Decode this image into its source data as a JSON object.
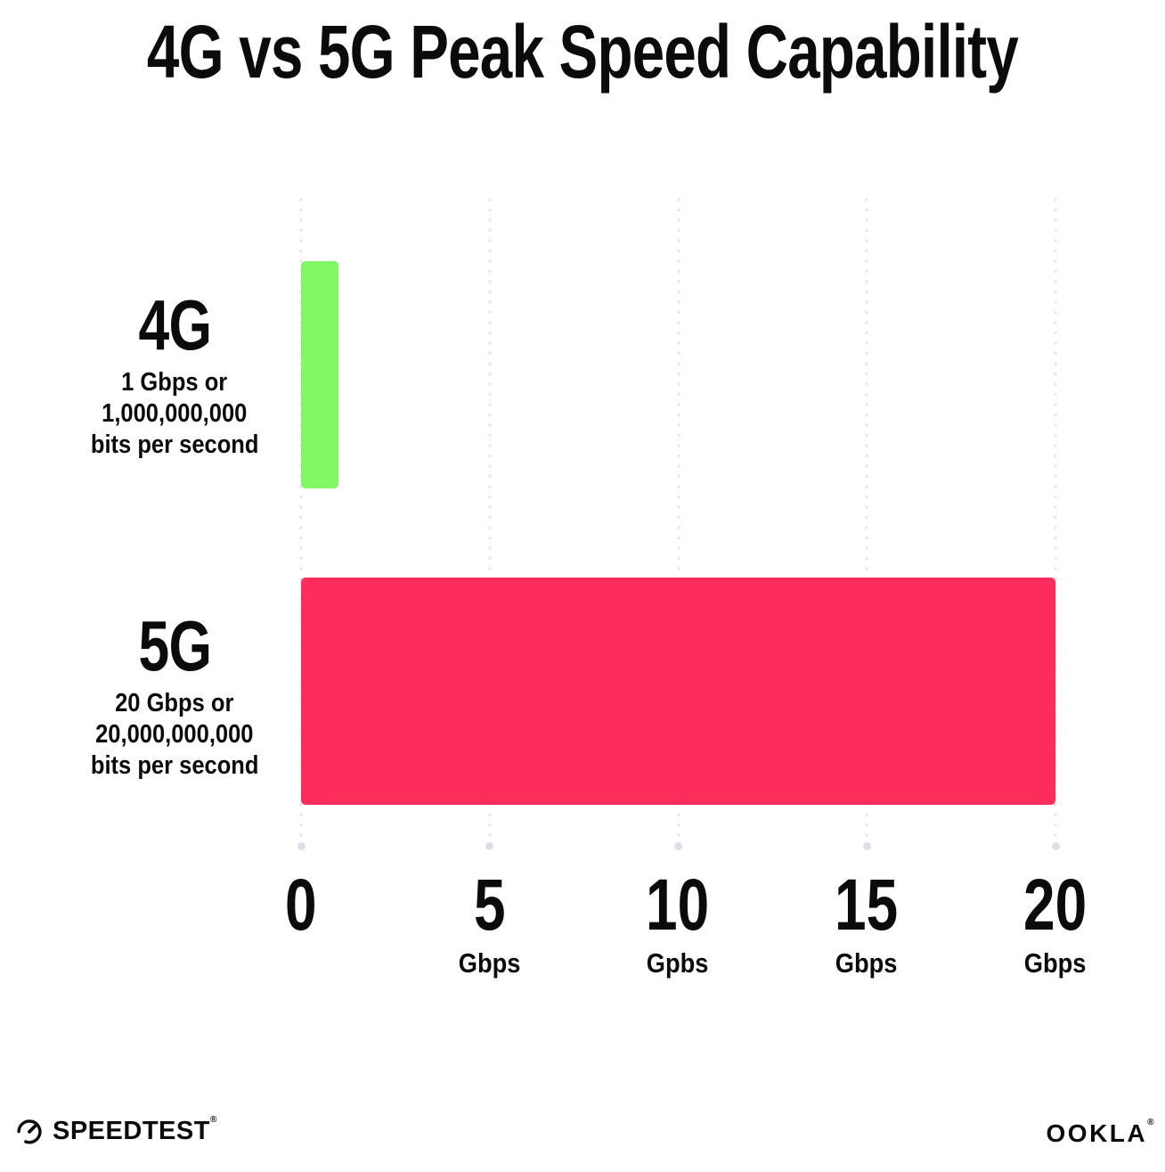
{
  "chart_data": {
    "type": "bar",
    "orientation": "horizontal",
    "title": "4G vs 5G Peak Speed Capability",
    "categories": [
      "4G",
      "5G"
    ],
    "values": [
      1,
      20
    ],
    "unit": "Gbps",
    "xlim": [
      0,
      20
    ],
    "x_ticks": [
      0,
      5,
      10,
      15,
      20
    ],
    "x_tick_units": [
      "",
      "Gbps",
      "Gpbs",
      "Gbps",
      "Gbps"
    ],
    "bar_colors": [
      "#81F863",
      "#FD2D5B"
    ],
    "grid": "vertical dotted gridlines at each tick, terminating dot at bottom",
    "legend_position": "none",
    "annotations": [
      "4G: 1 Gbps or 1,000,000,000 bits per second",
      "5G: 20 Gbps or 20,000,000,000 bits per second"
    ]
  },
  "rows": [
    {
      "label": "4G",
      "sub_lines": [
        "1 Gbps or",
        "1,000,000,000",
        "bits per second"
      ]
    },
    {
      "label": "5G",
      "sub_lines": [
        "20 Gbps or",
        "20,000,000,000",
        "bits per second"
      ]
    }
  ],
  "x_axis": {
    "ticks": [
      {
        "value": "0",
        "unit": ""
      },
      {
        "value": "5",
        "unit": "Gbps"
      },
      {
        "value": "10",
        "unit": "Gpbs"
      },
      {
        "value": "15",
        "unit": "Gbps"
      },
      {
        "value": "20",
        "unit": "Gbps"
      }
    ]
  },
  "footer": {
    "speedtest_label": "SPEEDTEST",
    "ookla_label": "OOKLA",
    "trademark": "®"
  },
  "colors": {
    "text": "#0b0b0c",
    "grid_dot": "#e4e6ef",
    "grid_end_dot": "#dde0ea",
    "background": "#ffffff"
  }
}
